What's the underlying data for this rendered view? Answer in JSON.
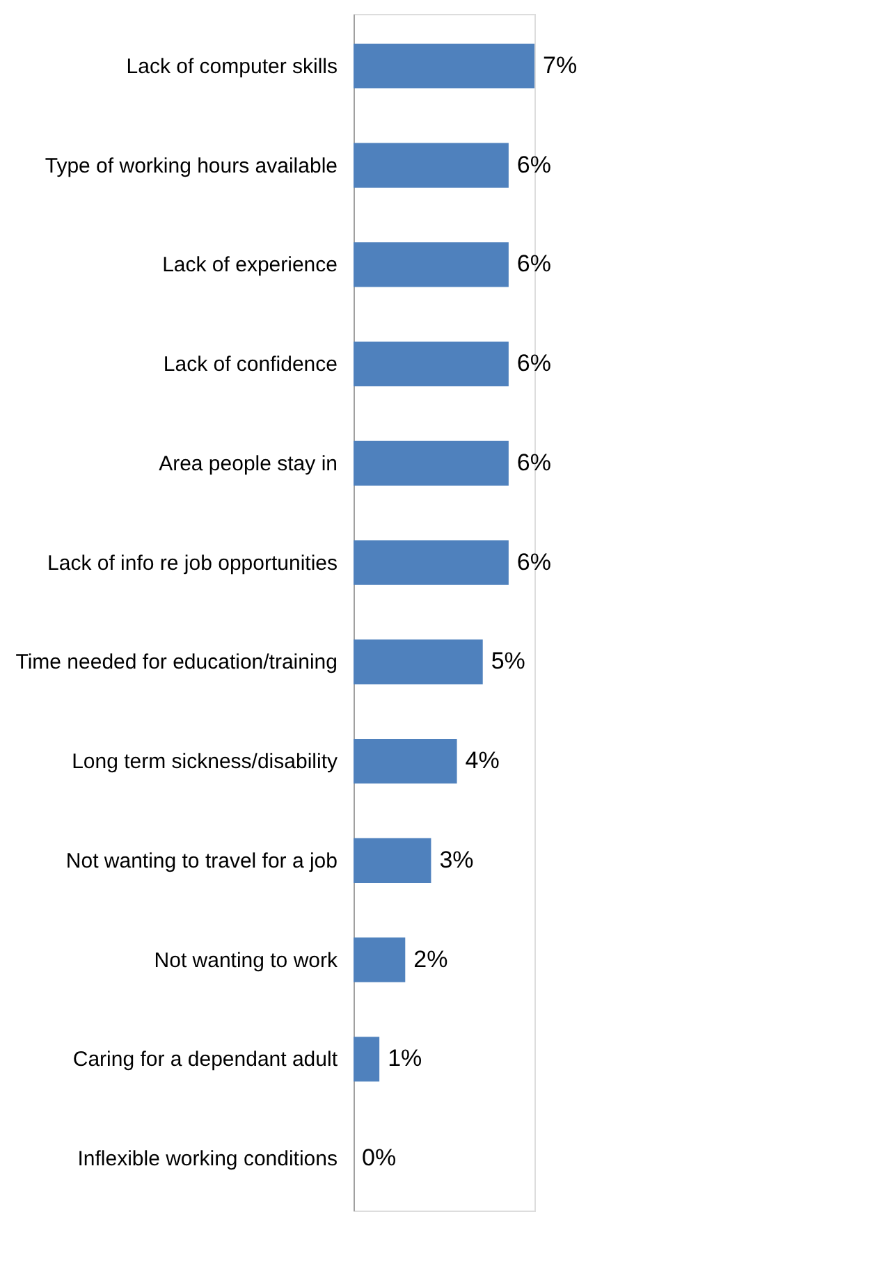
{
  "chart_data": {
    "type": "bar",
    "orientation": "horizontal",
    "categories": [
      "Lack of computer skills",
      "Type of working hours available",
      "Lack of experience",
      "Lack of confidence",
      "Area people stay in",
      "Lack of info re job opportunities",
      "Time needed for education/training",
      "Long term sickness/disability",
      "Not wanting to travel for a job",
      "Not wanting to work",
      "Caring for a dependant adult",
      "Inflexible working conditions"
    ],
    "values": [
      7,
      6,
      6,
      6,
      6,
      6,
      5,
      4,
      3,
      2,
      1,
      0
    ],
    "value_labels": [
      "7%",
      "6%",
      "6%",
      "6%",
      "6%",
      "6%",
      "5%",
      "4%",
      "3%",
      "2%",
      "1%",
      "0%"
    ],
    "color": "#4f81bd"
  }
}
